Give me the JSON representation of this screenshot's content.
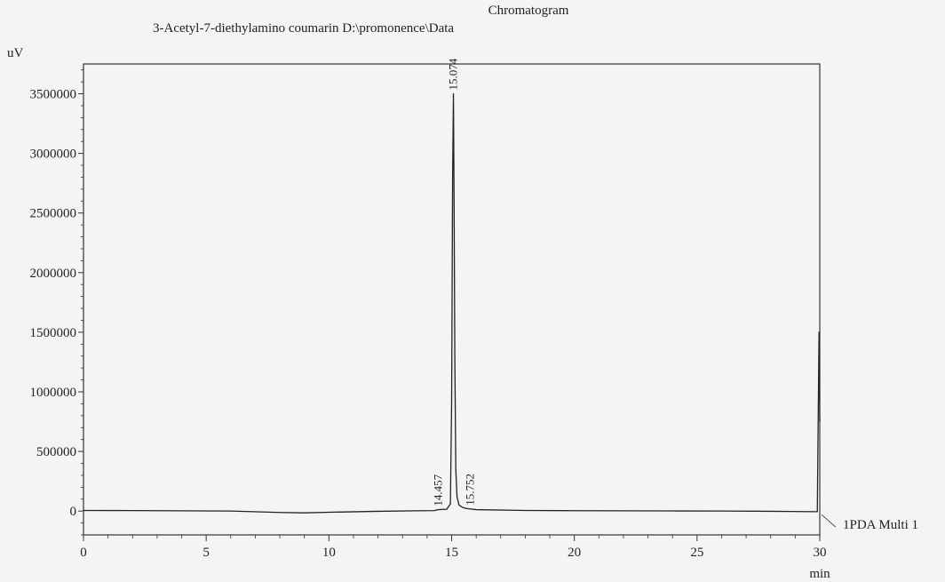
{
  "chart_data": {
    "type": "line",
    "title": "Chromatogram",
    "subtitle": "3-Acetyl-7-diethylamino coumarin D:\\promonence\\Data",
    "xlabel": "min",
    "ylabel": "uV",
    "xlim": [
      0,
      30
    ],
    "ylim": [
      -200000,
      3750000
    ],
    "x_ticks": [
      0,
      5,
      10,
      15,
      20,
      25,
      30
    ],
    "x_tick_labels": [
      "0",
      "5",
      "10",
      "15",
      "20",
      "25",
      "30"
    ],
    "y_ticks": [
      0,
      500000,
      1000000,
      1500000,
      2000000,
      2500000,
      3000000,
      3500000
    ],
    "y_tick_labels": [
      "0",
      "500000",
      "1000000",
      "1500000",
      "2000000",
      "2500000",
      "3000000",
      "3500000"
    ],
    "grid": false,
    "series": [
      {
        "name": "1PDA Multi 1",
        "x": [
          0,
          2,
          4,
          6,
          8,
          9,
          10,
          12,
          13.5,
          14.3,
          14.457,
          14.8,
          14.95,
          15.0,
          15.04,
          15.074,
          15.1,
          15.13,
          15.17,
          15.22,
          15.3,
          15.45,
          15.6,
          15.752,
          16.0,
          18,
          20,
          22,
          24,
          26,
          28,
          29.9,
          29.97,
          30.0
        ],
        "y": [
          5000,
          4000,
          2000,
          0,
          -12000,
          -15000,
          -10000,
          -2000,
          2000,
          4000,
          12000,
          15000,
          60000,
          900000,
          2800000,
          3500000,
          2600000,
          1300000,
          350000,
          120000,
          50000,
          30000,
          22000,
          18000,
          12000,
          5000,
          3000,
          2000,
          1000,
          0,
          -2000,
          -5000,
          1500000,
          750000
        ]
      }
    ],
    "peaks": [
      {
        "rt": 14.457,
        "label": "14.457"
      },
      {
        "rt": 15.074,
        "label": "15.074"
      },
      {
        "rt": 15.752,
        "label": "15.752"
      }
    ]
  }
}
